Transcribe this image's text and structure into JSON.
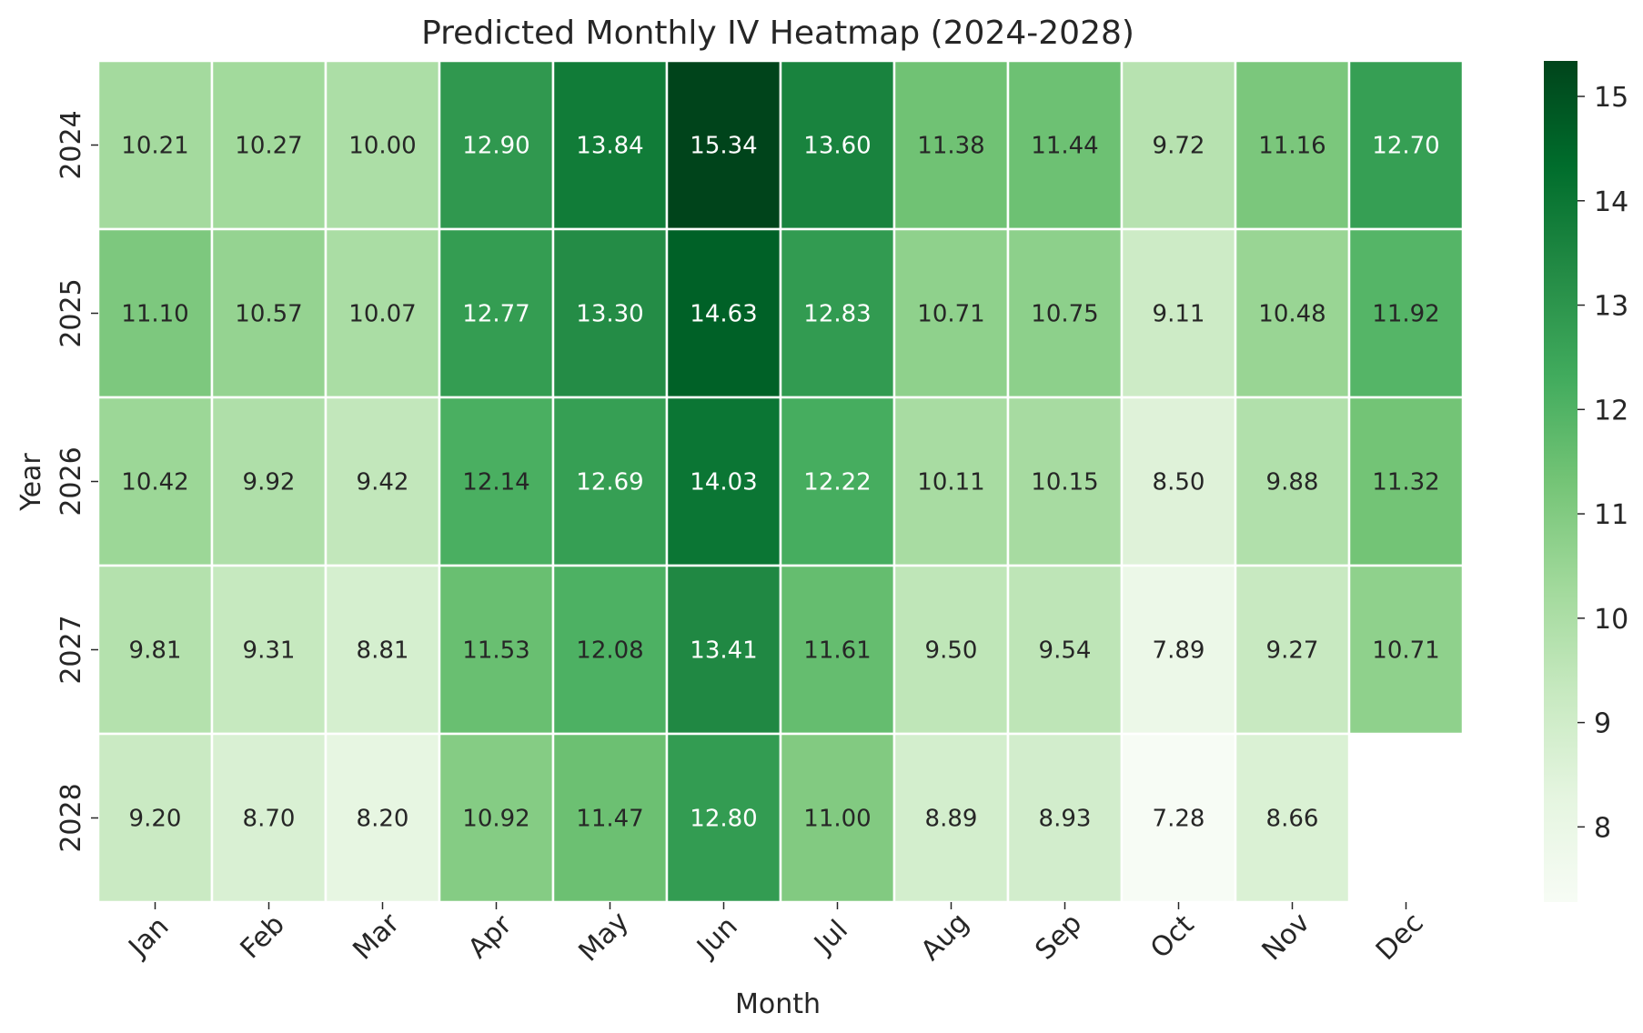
{
  "chart_data": {
    "type": "heatmap",
    "title": "Predicted Monthly IV Heatmap (2024-2028)",
    "xlabel": "Month",
    "ylabel": "Year",
    "x_categories": [
      "Jan",
      "Feb",
      "Mar",
      "Apr",
      "May",
      "Jun",
      "Jul",
      "Aug",
      "Sep",
      "Oct",
      "Nov",
      "Dec"
    ],
    "y_categories": [
      "2024",
      "2025",
      "2026",
      "2027",
      "2028"
    ],
    "values": [
      [
        10.21,
        10.27,
        10.0,
        12.9,
        13.84,
        15.34,
        13.6,
        11.38,
        11.44,
        9.72,
        11.16,
        12.7
      ],
      [
        11.1,
        10.57,
        10.07,
        12.77,
        13.3,
        14.63,
        12.83,
        10.71,
        10.75,
        9.11,
        10.48,
        11.92
      ],
      [
        10.42,
        9.92,
        9.42,
        12.14,
        12.69,
        14.03,
        12.22,
        10.11,
        10.15,
        8.5,
        9.88,
        11.32
      ],
      [
        9.81,
        9.31,
        8.81,
        11.53,
        12.08,
        13.41,
        11.61,
        9.5,
        9.54,
        7.89,
        9.27,
        10.71
      ],
      [
        9.2,
        8.7,
        8.2,
        10.92,
        11.47,
        12.8,
        11.0,
        8.89,
        8.93,
        7.28,
        8.66,
        null
      ]
    ],
    "value_format": "2 decimals",
    "colormap": "Greens",
    "color_range": [
      7.28,
      15.34
    ],
    "colorbar_ticks": [
      8,
      9,
      10,
      11,
      12,
      13,
      14,
      15
    ],
    "colorbar_position": "right",
    "grid": false
  }
}
